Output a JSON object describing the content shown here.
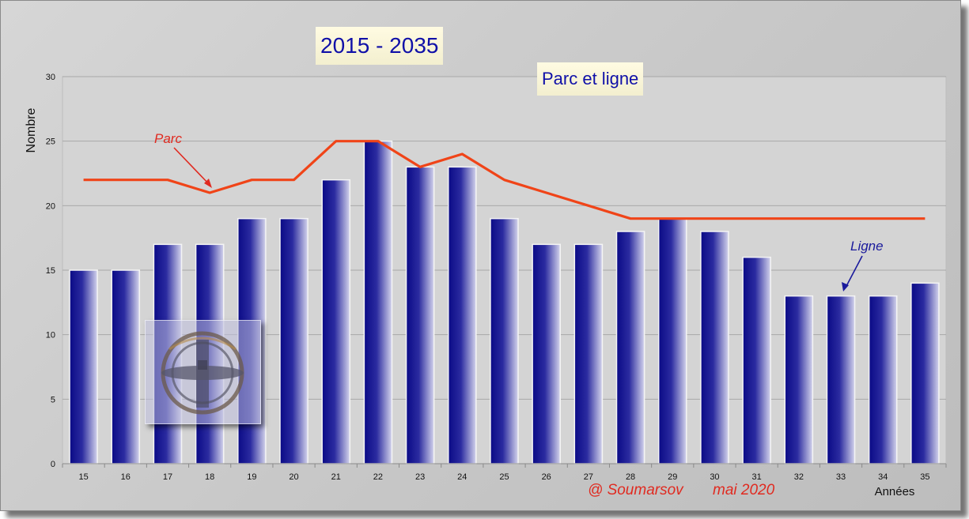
{
  "chart_data": {
    "type": "bar",
    "title": "2015 - 2035",
    "subtitle": "Parc et ligne",
    "ylabel": "Nombre",
    "xlabel": "Années",
    "ylim": [
      0,
      30
    ],
    "yticks": [
      0,
      5,
      10,
      15,
      20,
      25,
      30
    ],
    "grid": true,
    "categories": [
      "15",
      "16",
      "17",
      "18",
      "19",
      "20",
      "21",
      "22",
      "23",
      "24",
      "25",
      "26",
      "27",
      "28",
      "29",
      "30",
      "31",
      "32",
      "33",
      "34",
      "35"
    ],
    "series": [
      {
        "name": "Ligne",
        "type": "bar",
        "color": "#0d0d8c",
        "values": [
          15,
          15,
          17,
          17,
          19,
          19,
          22,
          25,
          23,
          23,
          19,
          17,
          17,
          18,
          19,
          18,
          16,
          13,
          13,
          13,
          14
        ]
      },
      {
        "name": "Parc",
        "type": "line",
        "color": "#f04418",
        "values": [
          22,
          22,
          22,
          21,
          22,
          22,
          25,
          25,
          23,
          24,
          22,
          21,
          20,
          19,
          19,
          19,
          19,
          19,
          19,
          19,
          19
        ]
      }
    ],
    "annotations": {
      "parc_label": "Parc",
      "ligne_label": "Ligne",
      "credit_author": "@ Soumarsov",
      "credit_date": "mai 2020"
    }
  }
}
